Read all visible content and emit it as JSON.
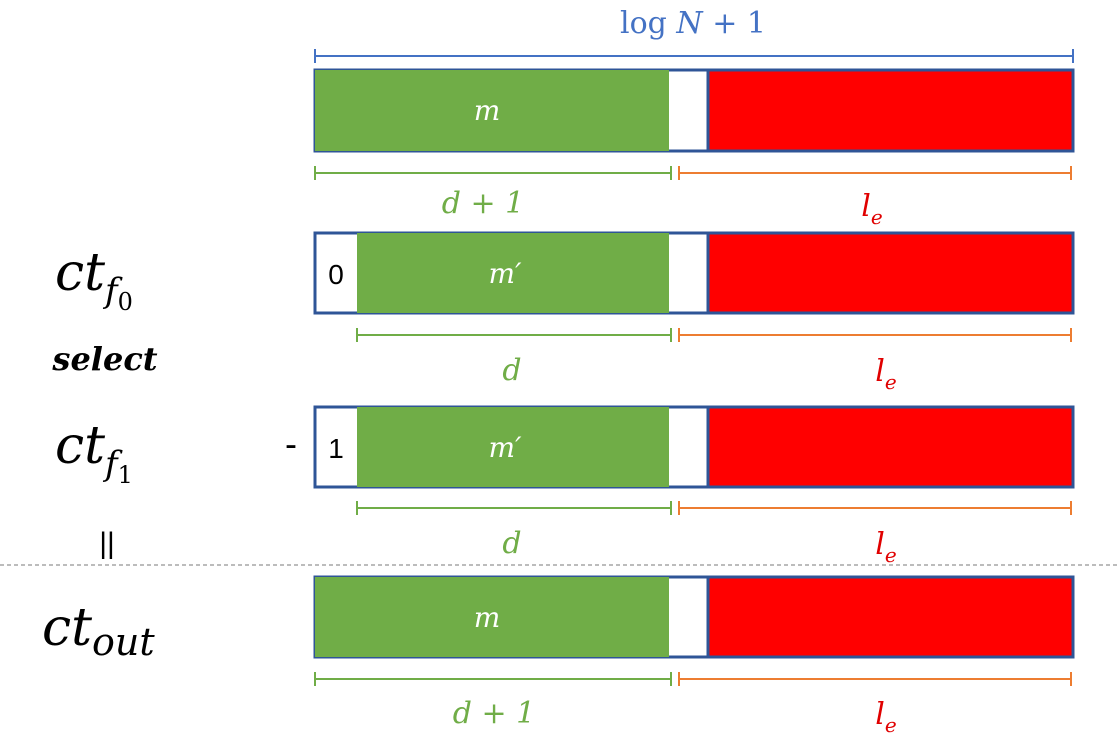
{
  "top_label": "log N + 1",
  "top_label_parts": {
    "fn": "log",
    "var": "N",
    "rest": "+ 1"
  },
  "rows": [
    {
      "name": "m-row",
      "label": "",
      "prefix": "",
      "operator": "",
      "field_text": "m",
      "lower_left": "d + 1",
      "lower_right_base": "l",
      "lower_right_sub": "e"
    },
    {
      "name": "ct-f0-row",
      "label_base": "ct",
      "label_sub_base": "f",
      "label_sub_sub": "0",
      "prefix": "0",
      "operator": "",
      "field_text": "m′",
      "lower_left": "d",
      "lower_right_base": "l",
      "lower_right_sub": "e"
    },
    {
      "name": "ct-f1-row",
      "label_base": "ct",
      "label_sub_base": "f",
      "label_sub_sub": "1",
      "prefix": "1",
      "operator": "-",
      "field_text": "m′",
      "lower_left": "d",
      "lower_right_base": "l",
      "lower_right_sub": "e"
    },
    {
      "name": "ct-out-row",
      "label_base": "ct",
      "label_sub": "out",
      "prefix": "",
      "operator": "",
      "field_text": "m",
      "lower_left": "d + 1",
      "lower_right_base": "l",
      "lower_right_sub": "e"
    }
  ],
  "select_label": "select",
  "equals_sign": "||",
  "colors": {
    "green": "#70ad47",
    "red": "#ff0000",
    "blue_border": "#2f5597",
    "blue_text": "#4472c4",
    "orange": "#ed7d31",
    "text_red": "#e00000",
    "divider": "#a6a6a6"
  }
}
